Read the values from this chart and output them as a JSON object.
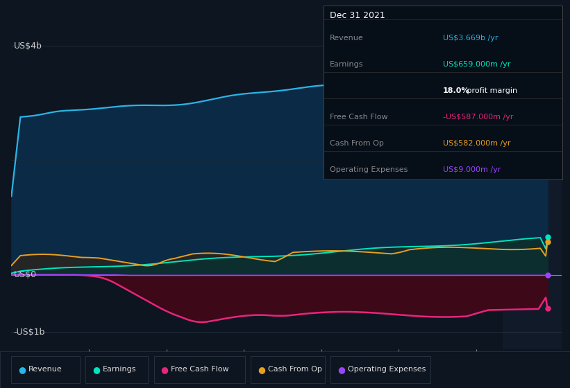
{
  "bg_color": "#0d1520",
  "plot_bg_color": "#0d1520",
  "ylim": [
    -1300000000.0,
    4600000000.0
  ],
  "xlim": [
    2015.0,
    2022.1
  ],
  "xtick_positions": [
    2016,
    2017,
    2018,
    2019,
    2020,
    2021
  ],
  "series_colors": {
    "revenue": "#29b5e8",
    "earnings": "#00e5c0",
    "free_cash_flow": "#e8247c",
    "cash_from_op": "#e8a020",
    "operating_expenses": "#9b44ff"
  },
  "fill_colors": {
    "revenue": "#0a2a45",
    "earnings_above": "#1a3a3a",
    "earnings_below": "#1a3535",
    "cash_op_gray": "#2a2a2a",
    "free_cash_flow": "#3d0818",
    "operating_expenses": "#1a0535"
  },
  "info_box": {
    "title": "Dec 31 2021",
    "title_color": "#ffffff",
    "bg": "#060e18",
    "border": "#444444",
    "rows": [
      {
        "label": "Revenue",
        "value": "US$3.669b /yr",
        "value_color": "#29b5e8",
        "bold_prefix": ""
      },
      {
        "label": "Earnings",
        "value": "US$659.000m /yr",
        "value_color": "#00e5c0",
        "bold_prefix": ""
      },
      {
        "label": "",
        "value": "18.0% profit margin",
        "value_color": "#ffffff",
        "bold_prefix": "18.0%"
      },
      {
        "label": "Free Cash Flow",
        "value": "-US$587.000m /yr",
        "value_color": "#e8247c",
        "bold_prefix": ""
      },
      {
        "label": "Cash From Op",
        "value": "US$582.000m /yr",
        "value_color": "#e8a020",
        "bold_prefix": ""
      },
      {
        "label": "Operating Expenses",
        "value": "US$9.000m /yr",
        "value_color": "#9b44ff",
        "bold_prefix": ""
      }
    ]
  },
  "legend": [
    {
      "label": "Revenue",
      "color": "#29b5e8"
    },
    {
      "label": "Earnings",
      "color": "#00e5c0"
    },
    {
      "label": "Free Cash Flow",
      "color": "#e8247c"
    },
    {
      "label": "Cash From Op",
      "color": "#e8a020"
    },
    {
      "label": "Operating Expenses",
      "color": "#9b44ff"
    }
  ]
}
